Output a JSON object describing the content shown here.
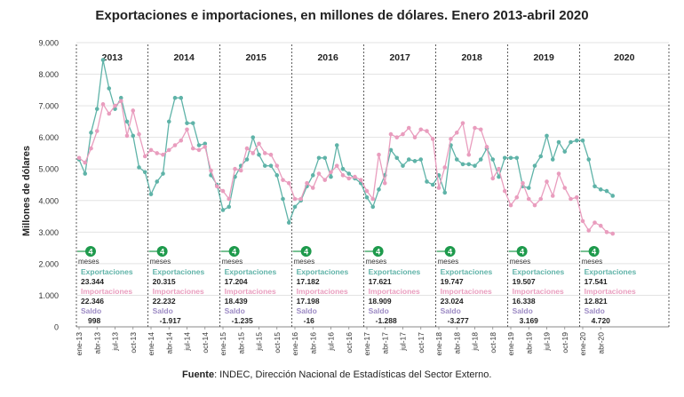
{
  "title": "Exportaciones e importaciones, en millones de dólares. Enero 2013-abril 2020",
  "source": {
    "label": "Fuente",
    "text": ": INDEC, Dirección Nacional de Estadísticas del Sector Externo."
  },
  "colors": {
    "exportaciones": "#5fb3a8",
    "importaciones": "#e99dbe",
    "saldo": "#9c8ac4",
    "badge": "#1e9a4c",
    "grid": "#e3e3e3"
  },
  "chart_data": {
    "type": "line",
    "ylabel": "Millones de dólares",
    "ylim": [
      0,
      9000
    ],
    "yticks": [
      "0",
      "1.000",
      "2.000",
      "3.000",
      "4.000",
      "5.000",
      "6.000",
      "7.000",
      "8.000",
      "9.000"
    ],
    "grid": true,
    "years": [
      "2013",
      "2014",
      "2015",
      "2016",
      "2017",
      "2018",
      "2019",
      "2020"
    ],
    "xtick_labels": [
      "ene-13",
      "abr-13",
      "jul-13",
      "oct-13",
      "ene-14",
      "abr-14",
      "jul-14",
      "oct-14",
      "ene-15",
      "abr-15",
      "jul-15",
      "oct-15",
      "ene-16",
      "abr-16",
      "jul-16",
      "oct-16",
      "ene-17",
      "abr-17",
      "jul-17",
      "oct-17",
      "ene-18",
      "abr-18",
      "jul-18",
      "oct-18",
      "ene-19",
      "abr-19",
      "jul-19",
      "oct-19",
      "ene-20",
      "abr-20"
    ],
    "series": [
      {
        "name": "Exportaciones",
        "values": [
          5300,
          4850,
          6150,
          6900,
          8450,
          7550,
          6900,
          7250,
          6500,
          6050,
          5050,
          4900,
          4200,
          4600,
          4850,
          6500,
          7250,
          7250,
          6450,
          6450,
          5750,
          5800,
          4800,
          4500,
          3700,
          3800,
          4750,
          5100,
          5300,
          6000,
          5450,
          5100,
          5100,
          4800,
          4050,
          3300,
          3800,
          4000,
          4450,
          4800,
          5350,
          5350,
          4750,
          5750,
          5000,
          4850,
          4700,
          4550,
          4100,
          3800,
          4350,
          4800,
          5600,
          5350,
          5100,
          5300,
          5250,
          5300,
          4600,
          4500,
          4800,
          4250,
          5750,
          5300,
          5150,
          5150,
          5100,
          5300,
          5650,
          5300,
          4750,
          5350,
          5350,
          5350,
          4450,
          4400,
          5100,
          5400,
          6050,
          5300,
          5850,
          5550,
          5850,
          5900,
          5900,
          5300,
          4450,
          4350,
          4300,
          4150
        ]
      },
      {
        "name": "Importaciones",
        "values": [
          5350,
          5200,
          5650,
          6200,
          7050,
          6750,
          7000,
          7150,
          6050,
          6850,
          6100,
          5400,
          5600,
          5500,
          5450,
          5600,
          5750,
          5900,
          6250,
          5650,
          5600,
          5700,
          4950,
          4450,
          4300,
          4050,
          5000,
          4950,
          5650,
          5500,
          5800,
          5500,
          5450,
          5100,
          4650,
          4550,
          4050,
          4050,
          4550,
          4400,
          4850,
          4650,
          4900,
          5100,
          4800,
          4700,
          4750,
          4650,
          4300,
          4050,
          5450,
          4550,
          6100,
          6000,
          6100,
          6300,
          6000,
          6250,
          6200,
          5950,
          4400,
          5050,
          5950,
          6150,
          6450,
          5450,
          6300,
          6250,
          5700,
          4700,
          5000,
          4300,
          3850,
          4100,
          4550,
          4050,
          3850,
          4050,
          4600,
          4150,
          4850,
          4400,
          4050,
          4100,
          3350,
          3050,
          3300,
          3200,
          3000,
          2950
        ]
      }
    ],
    "annotations": [
      {
        "year": "2013",
        "meses": "4",
        "meses_label": "meses",
        "exp_label": "Exportaciones",
        "exp": "23.344",
        "imp_label": "Importaciones",
        "imp": "22.346",
        "saldo_label": "Saldo",
        "saldo": "998"
      },
      {
        "year": "2014",
        "meses": "4",
        "meses_label": "meses",
        "exp_label": "Exportaciones",
        "exp": "20.315",
        "imp_label": "Importaciones",
        "imp": "22.232",
        "saldo_label": "Saldo",
        "saldo": "-1.917"
      },
      {
        "year": "2015",
        "meses": "4",
        "meses_label": "meses",
        "exp_label": "Exportaciones",
        "exp": "17.204",
        "imp_label": "Importaciones",
        "imp": "18.439",
        "saldo_label": "Saldo",
        "saldo": "-1.235"
      },
      {
        "year": "2016",
        "meses": "4",
        "meses_label": "meses",
        "exp_label": "Exportaciones",
        "exp": "17.182",
        "imp_label": "Importaciones",
        "imp": "17.198",
        "saldo_label": "Saldo",
        "saldo": "-16"
      },
      {
        "year": "2017",
        "meses": "4",
        "meses_label": "meses",
        "exp_label": "Exportaciones",
        "exp": "17.621",
        "imp_label": "Importaciones",
        "imp": "18.909",
        "saldo_label": "Saldo",
        "saldo": "-1.288"
      },
      {
        "year": "2018",
        "meses": "4",
        "meses_label": "meses",
        "exp_label": "Exportaciones",
        "exp": "19.747",
        "imp_label": "Importaciones",
        "imp": "23.024",
        "saldo_label": "Saldo",
        "saldo": "-3.277"
      },
      {
        "year": "2019",
        "meses": "4",
        "meses_label": "meses",
        "exp_label": "Exportaciones",
        "exp": "19.507",
        "imp_label": "Importaciones",
        "imp": "16.338",
        "saldo_label": "Saldo",
        "saldo": "3.169"
      },
      {
        "year": "2020",
        "meses": "4",
        "meses_label": "meses",
        "exp_label": "Exportaciones",
        "exp": "17.541",
        "imp_label": "Importaciones",
        "imp": "12.821",
        "saldo_label": "Saldo",
        "saldo": "4.720"
      }
    ]
  }
}
